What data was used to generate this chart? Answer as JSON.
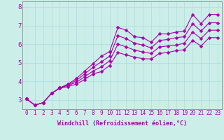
{
  "xlabel": "Windchill (Refroidissement éolien,°C)",
  "bg_color": "#cceee8",
  "line_color": "#aa00aa",
  "xlim": [
    -0.5,
    23.5
  ],
  "ylim": [
    2.5,
    8.3
  ],
  "yticks": [
    3,
    4,
    5,
    6,
    7,
    8
  ],
  "xtick_labels": [
    "0",
    "1",
    "2",
    "3",
    "4",
    "5",
    "6",
    "7",
    "8",
    "9",
    "10",
    "11",
    "12",
    "13",
    "14",
    "15",
    "16",
    "17",
    "18",
    "19",
    "20",
    "21",
    "22",
    "23"
  ],
  "series": [
    [
      3.05,
      2.72,
      2.85,
      3.35,
      3.65,
      3.85,
      4.15,
      4.55,
      4.95,
      5.35,
      5.6,
      6.9,
      6.75,
      6.4,
      6.35,
      6.1,
      6.55,
      6.55,
      6.65,
      6.7,
      7.6,
      7.1,
      7.6,
      7.6
    ],
    [
      3.05,
      2.72,
      2.85,
      3.35,
      3.65,
      3.82,
      4.05,
      4.4,
      4.75,
      5.05,
      5.35,
      6.45,
      6.3,
      6.05,
      5.95,
      5.8,
      6.2,
      6.25,
      6.35,
      6.4,
      7.1,
      6.7,
      7.15,
      7.15
    ],
    [
      3.05,
      2.72,
      2.85,
      3.35,
      3.65,
      3.78,
      3.95,
      4.25,
      4.55,
      4.78,
      5.1,
      6.0,
      5.85,
      5.68,
      5.58,
      5.5,
      5.85,
      5.9,
      5.95,
      6.05,
      6.65,
      6.3,
      6.75,
      6.75
    ],
    [
      3.05,
      2.72,
      2.85,
      3.35,
      3.62,
      3.72,
      3.85,
      4.1,
      4.4,
      4.52,
      4.85,
      5.55,
      5.42,
      5.3,
      5.22,
      5.2,
      5.5,
      5.55,
      5.65,
      5.7,
      6.2,
      5.9,
      6.35,
      6.35
    ]
  ],
  "marker": "D",
  "markersize": 2.5,
  "linewidth": 0.8,
  "grid_color": "#aadddd",
  "tick_fontsize": 5.5,
  "xlabel_fontsize": 6.0
}
